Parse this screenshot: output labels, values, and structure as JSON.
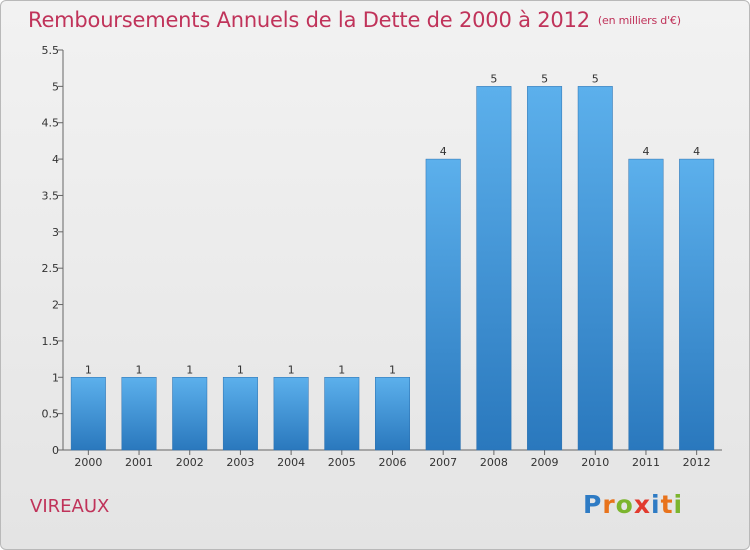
{
  "chart_data": {
    "type": "bar",
    "title": "Remboursements Annuels de la Dette de 2000 à 2012",
    "unit_note": "(en milliers d'€)",
    "categories": [
      "2000",
      "2001",
      "2002",
      "2003",
      "2004",
      "2005",
      "2006",
      "2007",
      "2008",
      "2009",
      "2010",
      "2011",
      "2012"
    ],
    "values": [
      1,
      1,
      1,
      1,
      1,
      1,
      1,
      4,
      5,
      5,
      5,
      4,
      4
    ],
    "data_labels": [
      "1",
      "1",
      "1",
      "1",
      "1",
      "1",
      "1",
      "4",
      "5",
      "5",
      "5",
      "4",
      "4"
    ],
    "yticks": [
      0,
      0.5,
      1,
      1.5,
      2,
      2.5,
      3,
      3.5,
      4,
      4.5,
      5,
      5.5
    ],
    "ytick_labels": [
      "0",
      "0.5",
      "1",
      "1.5",
      "2",
      "2.5",
      "3",
      "3.5",
      "4",
      "4.5",
      "5",
      "5.5"
    ],
    "ylim": [
      0,
      5.5
    ],
    "xlabel": "",
    "ylabel": "",
    "grid": false,
    "bar_color": "#4a9ee0"
  },
  "place_name": "VIREAUX",
  "logo": {
    "letters": [
      "P",
      "r",
      "o",
      "x",
      "i",
      "t",
      "i"
    ],
    "colors": [
      "#2e7bc4",
      "#e8731c",
      "#7cb52e",
      "#e23a2e",
      "#2e7bc4",
      "#e8731c",
      "#7cb52e"
    ]
  }
}
